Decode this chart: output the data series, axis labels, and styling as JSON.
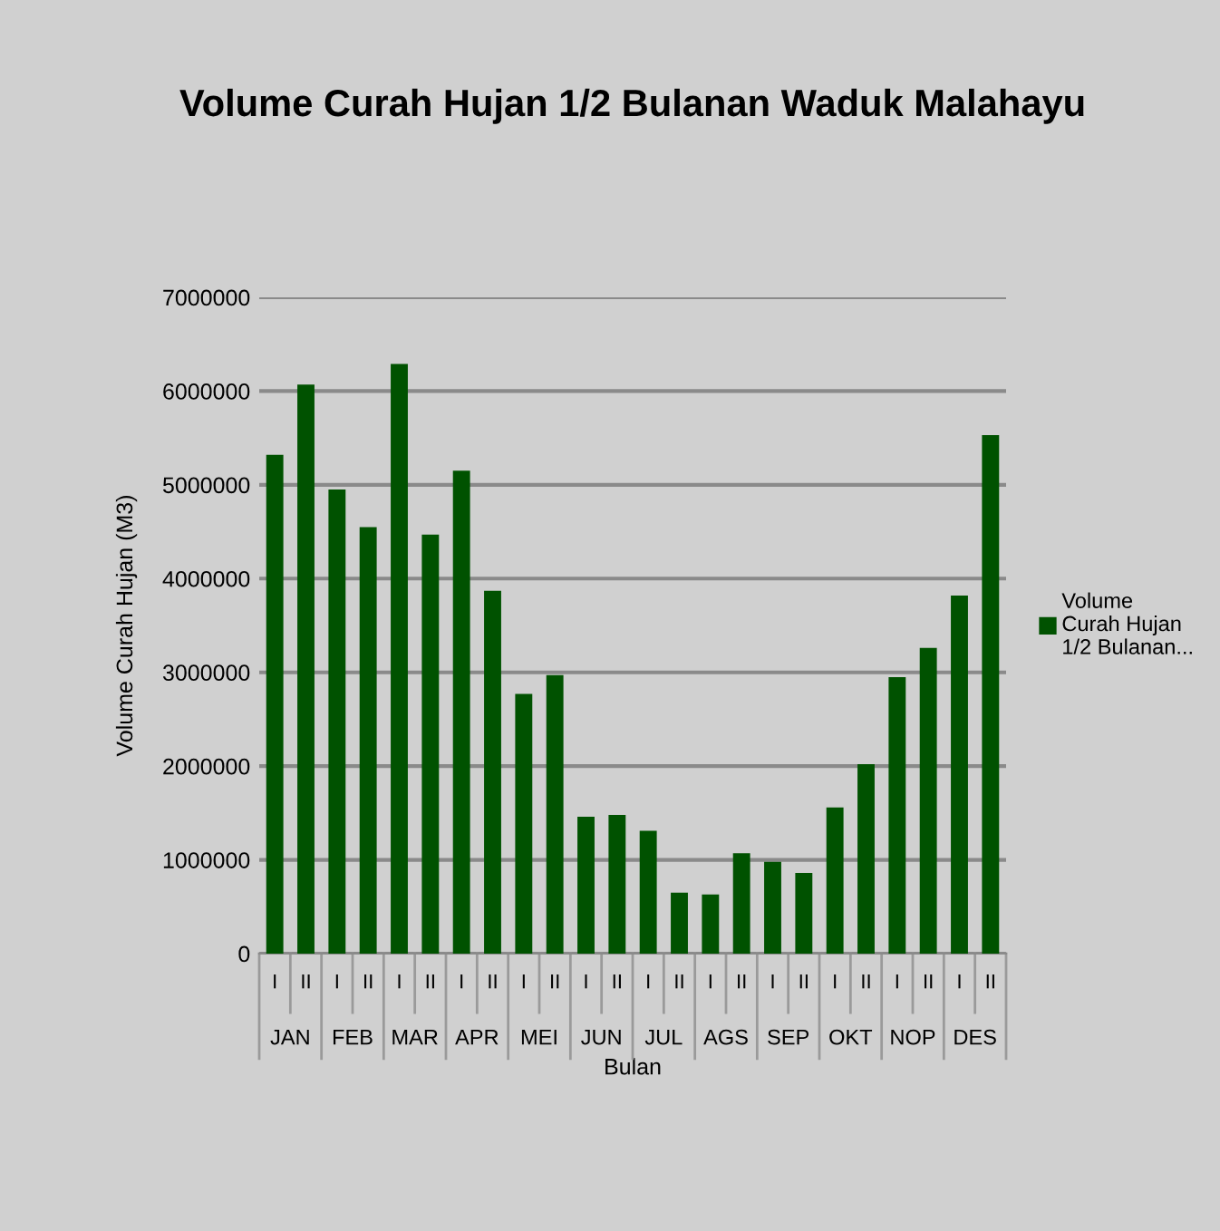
{
  "chart_data": {
    "type": "bar",
    "title": "Volume Curah Hujan 1/2 Bulanan Waduk Malahayu",
    "xlabel": "Bulan",
    "ylabel": "Volume Curah Hujan (M3)",
    "categories": [
      "I",
      "II",
      "I",
      "II",
      "I",
      "II",
      "I",
      "II",
      "I",
      "II",
      "I",
      "II",
      "I",
      "II",
      "I",
      "II",
      "I",
      "II",
      "I",
      "II",
      "I",
      "II",
      "I",
      "II"
    ],
    "annotations": [
      "JAN",
      "FEB",
      "MAR",
      "APR",
      "MEI",
      "JUN",
      "JUL",
      "AGS",
      "SEP",
      "OKT",
      "NOP",
      "DES"
    ],
    "series": [
      {
        "name": "Volume Curah Hujan 1/2 Bulanan...",
        "color": "#005200",
        "values": [
          5320000,
          6070000,
          4950000,
          4550000,
          6290000,
          4470000,
          5150000,
          3870000,
          2770000,
          2970000,
          1460000,
          1480000,
          1310000,
          650000,
          630000,
          1070000,
          980000,
          860000,
          1560000,
          2020000,
          2950000,
          3260000,
          3820000,
          5530000
        ]
      }
    ],
    "ylim": [
      0,
      7000000
    ],
    "yticks": [
      0,
      1000000,
      2000000,
      3000000,
      4000000,
      5000000,
      6000000,
      7000000
    ],
    "grid": "y",
    "legend": "right"
  }
}
